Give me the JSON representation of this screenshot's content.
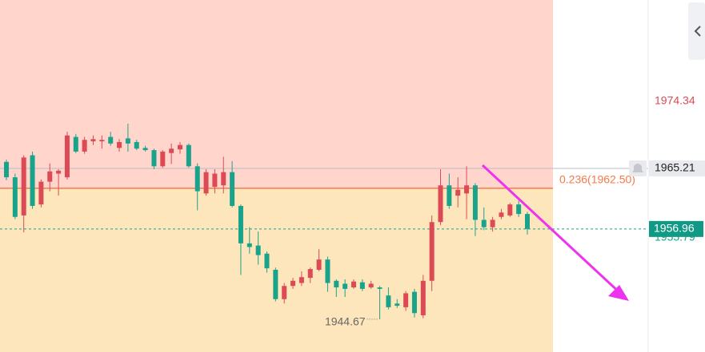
{
  "chart_data": {
    "type": "candlestick",
    "ylim": [
      1940.2,
      1988.15
    ],
    "open": [
      1966.1,
      1964.0,
      1958.8,
      1967.0,
      1960.3,
      1963.4,
      1964.5,
      1964.0,
      1969.5,
      1967.5,
      1968.9,
      1968.9,
      1969.5,
      1968.0,
      1969.3,
      1968.8,
      1968.0,
      1967.7,
      1965.5,
      1967.3,
      1967.8,
      1968.4,
      1965.5,
      1961.8,
      1962.7,
      1962.9,
      1964.7,
      1960.1,
      1955.0,
      1954.7,
      1953.6,
      1951.4,
      1947.4,
      1949.2,
      1949.6,
      1950.3,
      1951.4,
      1952.8,
      1949.9,
      1949.5,
      1949.0,
      1949.7,
      1949.0,
      1949.0,
      1947.9,
      1946.8,
      1946.3,
      1948.4,
      1945.2,
      1949.9,
      1957.9,
      1962.9,
      1961.5,
      1961.8,
      1962.9,
      1958.2,
      1957.2,
      1958.6,
      1958.8,
      1960.3,
      1959.0
    ],
    "high": [
      1966.4,
      1964.5,
      1967.0,
      1967.5,
      1963.7,
      1965.9,
      1965.1,
      1970.2,
      1969.9,
      1969.5,
      1969.7,
      1969.7,
      1970.2,
      1969.2,
      1971.3,
      1969.1,
      1968.3,
      1967.9,
      1967.7,
      1968.6,
      1968.8,
      1968.6,
      1965.9,
      1965.1,
      1965.1,
      1966.8,
      1966.2,
      1960.3,
      1957.2,
      1956.6,
      1953.9,
      1951.7,
      1949.6,
      1950.3,
      1951.2,
      1951.7,
      1954.2,
      1953.2,
      1950.1,
      1950.1,
      1950.1,
      1950.1,
      1949.9,
      1949.2,
      1949.0,
      1947.4,
      1948.5,
      1948.8,
      1950.7,
      1958.8,
      1965.1,
      1964.5,
      1964.0,
      1965.5,
      1963.2,
      1959.9,
      1958.6,
      1959.7,
      1960.5,
      1960.8,
      1959.3
    ],
    "low": [
      1963.6,
      1958.3,
      1956.5,
      1959.7,
      1959.9,
      1962.1,
      1961.5,
      1963.7,
      1967.3,
      1967.2,
      1968.4,
      1967.9,
      1968.3,
      1967.5,
      1967.5,
      1967.7,
      1967.5,
      1965.1,
      1965.3,
      1965.8,
      1967.2,
      1965.3,
      1959.5,
      1961.5,
      1961.8,
      1961.8,
      1959.9,
      1950.7,
      1953.6,
      1952.1,
      1951.0,
      1947.1,
      1946.8,
      1948.8,
      1949.2,
      1949.6,
      1951.2,
      1948.4,
      1947.7,
      1947.7,
      1948.8,
      1948.5,
      1948.8,
      1944.67,
      1946.0,
      1946.2,
      1945.8,
      1944.9,
      1944.8,
      1948.5,
      1957.5,
      1959.7,
      1959.9,
      1958.3,
      1956.0,
      1956.8,
      1956.6,
      1958.3,
      1958.6,
      1958.6,
      1956.2
    ],
    "close": [
      1964.0,
      1958.6,
      1966.7,
      1960.1,
      1963.4,
      1964.8,
      1964.9,
      1969.7,
      1967.5,
      1969.1,
      1969.2,
      1969.1,
      1968.6,
      1968.8,
      1968.6,
      1967.9,
      1967.7,
      1965.5,
      1967.5,
      1967.9,
      1968.4,
      1965.5,
      1962.1,
      1964.7,
      1964.5,
      1964.7,
      1960.1,
      1955.0,
      1954.5,
      1953.4,
      1951.6,
      1947.4,
      1949.2,
      1949.9,
      1950.4,
      1951.5,
      1952.8,
      1949.6,
      1949.0,
      1948.8,
      1949.8,
      1948.8,
      1949.5,
      1948.8,
      1946.3,
      1946.5,
      1948.2,
      1945.5,
      1949.9,
      1957.9,
      1962.9,
      1960.1,
      1962.3,
      1962.9,
      1958.2,
      1957.2,
      1958.2,
      1959.2,
      1960.3,
      1959.0,
      1956.96
    ],
    "up_color": "#dc4b55",
    "down_color": "#1aa38b",
    "fib": {
      "value": 1962.5,
      "label": "0.236(1962.50)",
      "color": "#f47a4e"
    },
    "zone_above_color": "#ffd5cc",
    "zone_below_color": "#fde6bb",
    "alert_price": 1965.21,
    "upper_price": 1974.34,
    "hidden_price": 1955.79
  }
}
